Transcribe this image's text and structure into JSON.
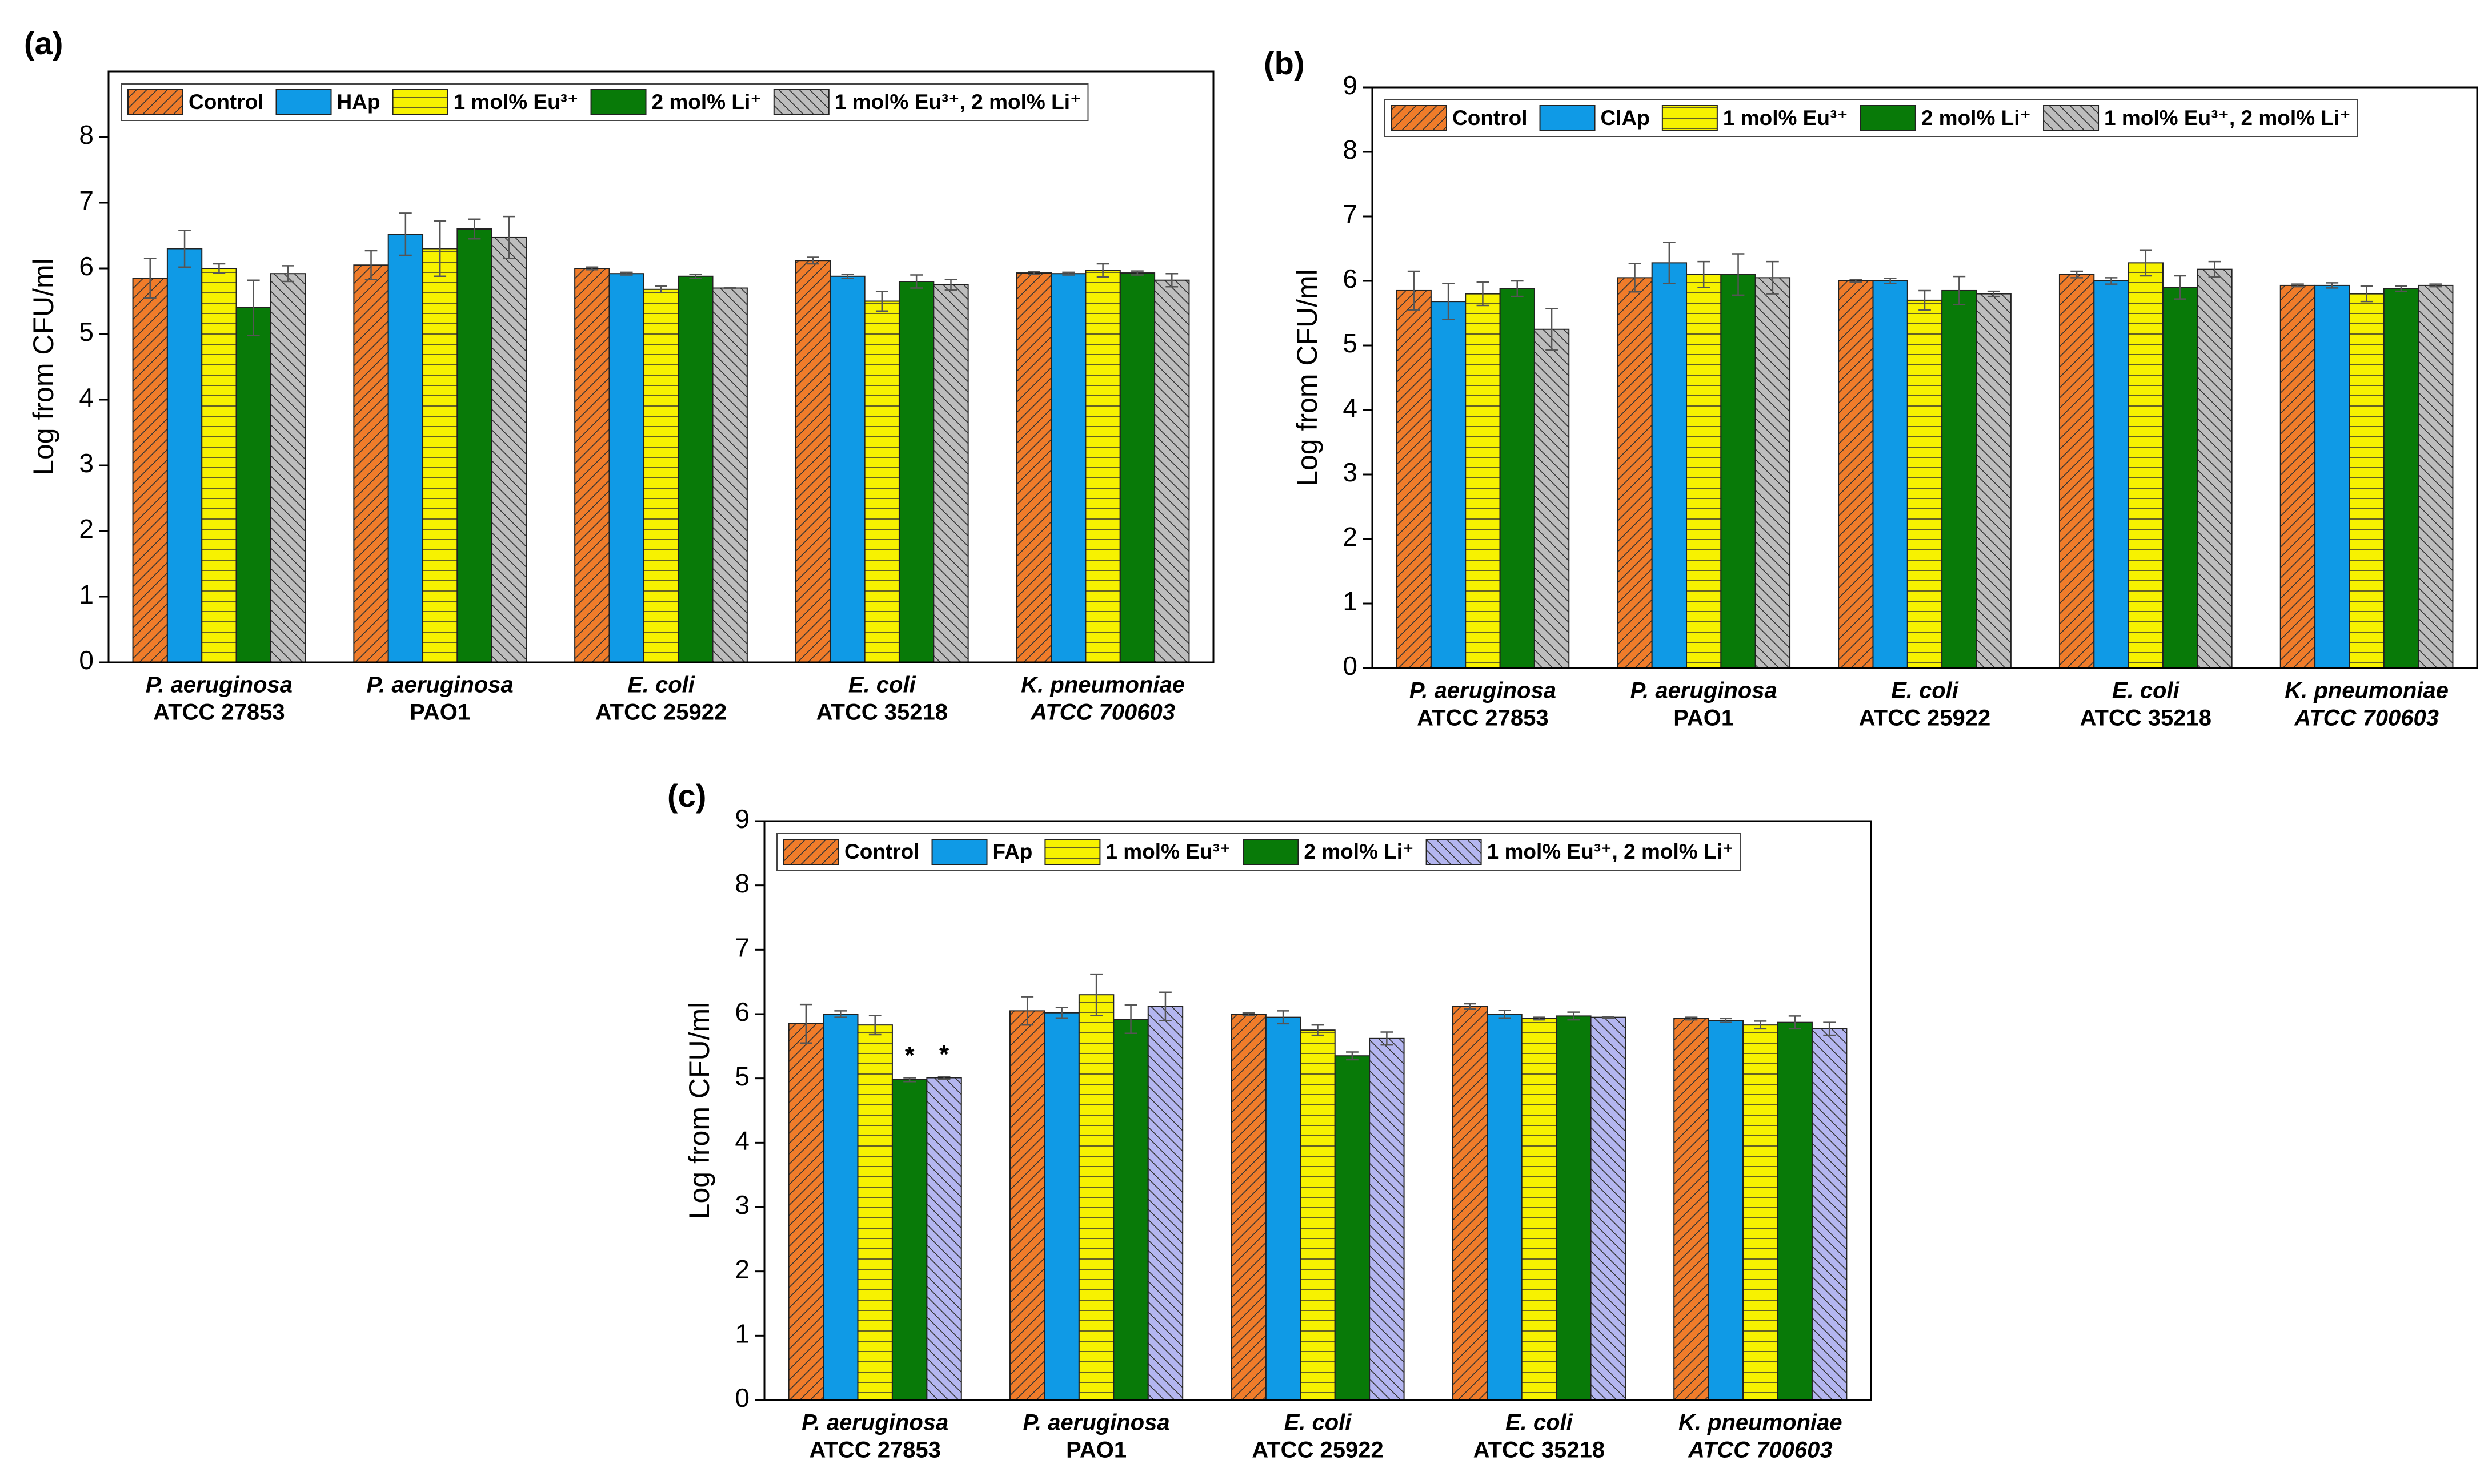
{
  "chart_data": [
    {
      "type": "bar",
      "label": "(a)",
      "ylabel": "Log from CFU/ml",
      "ylim": [
        0,
        9
      ],
      "yticks": [
        0,
        1,
        2,
        3,
        4,
        5,
        6,
        7,
        8
      ],
      "categories": [
        [
          "P. aeruginosa",
          "ATCC 27853"
        ],
        [
          "P. aeruginosa",
          "PAO1"
        ],
        [
          "E. coli",
          "ATCC 25922"
        ],
        [
          "E. coli",
          "ATCC 35218"
        ],
        [
          "K. pneumoniae",
          "ATCC 700603"
        ]
      ],
      "series": [
        {
          "name": "Control",
          "color": "#f07c2a",
          "pattern": "diagonal-up",
          "values": [
            5.85,
            6.05,
            6.0,
            6.12,
            5.93
          ],
          "errors": [
            0.3,
            0.22,
            0.02,
            0.05,
            0.02
          ]
        },
        {
          "name": "HAp",
          "color": "#0f9ae6",
          "pattern": "none",
          "values": [
            6.3,
            6.52,
            5.92,
            5.88,
            5.92
          ],
          "errors": [
            0.28,
            0.32,
            0.02,
            0.03,
            0.02
          ]
        },
        {
          "name": "1 mol% Eu³⁺",
          "color": "#f7f200",
          "pattern": "horizontal",
          "values": [
            6.0,
            6.3,
            5.68,
            5.5,
            5.97
          ],
          "errors": [
            0.07,
            0.42,
            0.05,
            0.15,
            0.1
          ]
        },
        {
          "name": "2 mol% Li⁺",
          "color": "#087a08",
          "pattern": "none",
          "values": [
            5.4,
            6.6,
            5.88,
            5.8,
            5.93
          ],
          "errors": [
            0.42,
            0.15,
            0.03,
            0.1,
            0.03
          ]
        },
        {
          "name": "1 mol% Eu³⁺, 2 mol% Li⁺",
          "color": "#bdbdbd",
          "pattern": "diagonal-down",
          "values": [
            5.92,
            6.47,
            5.7,
            5.75,
            5.82
          ],
          "errors": [
            0.12,
            0.32,
            0.01,
            0.08,
            0.1
          ]
        }
      ]
    },
    {
      "type": "bar",
      "label": "(b)",
      "ylabel": "Log from CFU/ml",
      "ylim": [
        0,
        9
      ],
      "yticks": [
        0,
        1,
        2,
        3,
        4,
        5,
        6,
        7,
        8,
        9
      ],
      "categories": [
        [
          "P. aeruginosa",
          "ATCC 27853"
        ],
        [
          "P. aeruginosa",
          "PAO1"
        ],
        [
          "E. coli",
          "ATCC 25922"
        ],
        [
          "E. coli",
          "ATCC 35218"
        ],
        [
          "K. pneumoniae",
          "ATCC 700603"
        ]
      ],
      "series": [
        {
          "name": "Control",
          "color": "#f07c2a",
          "pattern": "diagonal-up",
          "values": [
            5.85,
            6.05,
            6.0,
            6.1,
            5.93
          ],
          "errors": [
            0.3,
            0.22,
            0.02,
            0.05,
            0.02
          ]
        },
        {
          "name": "ClAp",
          "color": "#0f9ae6",
          "pattern": "none",
          "values": [
            5.68,
            6.28,
            6.0,
            6.0,
            5.93
          ],
          "errors": [
            0.28,
            0.32,
            0.04,
            0.05,
            0.04
          ]
        },
        {
          "name": "1 mol% Eu³⁺",
          "color": "#f7f200",
          "pattern": "horizontal",
          "values": [
            5.8,
            6.1,
            5.7,
            6.28,
            5.8
          ],
          "errors": [
            0.18,
            0.2,
            0.15,
            0.2,
            0.12
          ]
        },
        {
          "name": "2 mol% Li⁺",
          "color": "#087a08",
          "pattern": "none",
          "values": [
            5.88,
            6.1,
            5.85,
            5.9,
            5.88
          ],
          "errors": [
            0.12,
            0.32,
            0.22,
            0.18,
            0.04
          ]
        },
        {
          "name": "1 mol% Eu³⁺, 2 mol% Li⁺",
          "color": "#bdbdbd",
          "pattern": "diagonal-down",
          "values": [
            5.25,
            6.05,
            5.8,
            6.18,
            5.93
          ],
          "errors": [
            0.32,
            0.25,
            0.04,
            0.12,
            0.02
          ]
        }
      ]
    },
    {
      "type": "bar",
      "label": "(c)",
      "ylabel": "Log from CFU/ml",
      "ylim": [
        0,
        9
      ],
      "yticks": [
        0,
        1,
        2,
        3,
        4,
        5,
        6,
        7,
        8,
        9
      ],
      "categories": [
        [
          "P. aeruginosa",
          "ATCC 27853"
        ],
        [
          "P. aeruginosa",
          "PAO1"
        ],
        [
          "E. coli",
          "ATCC 25922"
        ],
        [
          "E. coli",
          "ATCC 35218"
        ],
        [
          "K. pneumoniae",
          "ATCC 700603"
        ]
      ],
      "series": [
        {
          "name": "Control",
          "color": "#f07c2a",
          "pattern": "diagonal-up",
          "values": [
            5.85,
            6.05,
            6.0,
            6.12,
            5.93
          ],
          "errors": [
            0.3,
            0.22,
            0.02,
            0.04,
            0.02
          ]
        },
        {
          "name": "FAp",
          "color": "#0f9ae6",
          "pattern": "none",
          "values": [
            6.0,
            6.02,
            5.95,
            6.0,
            5.9
          ],
          "errors": [
            0.05,
            0.08,
            0.1,
            0.06,
            0.03
          ]
        },
        {
          "name": "1 mol% Eu³⁺",
          "color": "#f7f200",
          "pattern": "horizontal",
          "values": [
            5.83,
            6.3,
            5.75,
            5.93,
            5.83
          ],
          "errors": [
            0.15,
            0.32,
            0.08,
            0.02,
            0.06
          ]
        },
        {
          "name": "2 mol% Li⁺",
          "color": "#087a08",
          "pattern": "none",
          "values": [
            4.98,
            5.92,
            5.35,
            5.97,
            5.87
          ],
          "errors": [
            0.03,
            0.22,
            0.06,
            0.06,
            0.1
          ]
        },
        {
          "name": "1 mol% Eu³⁺, 2 mol% Li⁺",
          "color": "#b4b6f0",
          "pattern": "diagonal-down",
          "values": [
            5.01,
            6.12,
            5.62,
            5.95,
            5.77
          ],
          "errors": [
            0.02,
            0.22,
            0.1,
            0.01,
            0.1
          ]
        }
      ],
      "annotations": [
        {
          "text": "*",
          "series": 3,
          "category": 0
        },
        {
          "text": "*",
          "series": 4,
          "category": 0
        }
      ]
    }
  ]
}
